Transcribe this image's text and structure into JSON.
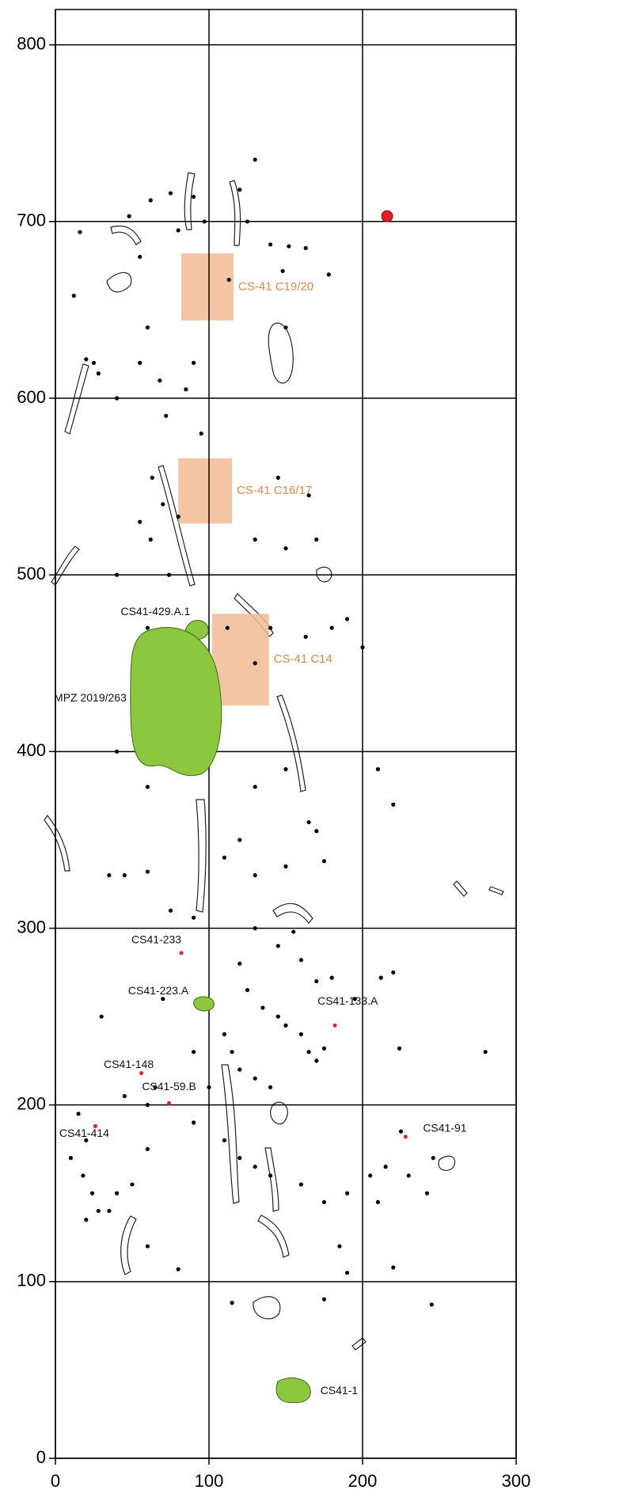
{
  "chart_data": {
    "type": "scatter",
    "xlim": [
      0,
      300
    ],
    "ylim": [
      0,
      820
    ],
    "xticks": [
      0,
      100,
      200,
      300
    ],
    "yticks": [
      0,
      100,
      200,
      300,
      400,
      500,
      600,
      700,
      800
    ],
    "grid": true,
    "color": "#000000",
    "x": [
      16,
      12,
      48,
      62,
      75,
      80,
      55,
      90,
      97,
      120,
      130,
      125,
      140,
      152,
      163,
      178,
      148,
      150,
      113,
      20,
      25,
      28,
      40,
      55,
      60,
      68,
      72,
      85,
      90,
      95,
      63,
      70,
      80,
      55,
      62,
      40,
      74,
      130,
      145,
      165,
      170,
      150,
      140,
      163,
      180,
      200,
      190,
      112,
      130,
      60,
      40,
      60,
      130,
      150,
      165,
      170,
      120,
      110,
      130,
      150,
      175,
      210,
      220,
      35,
      45,
      60,
      75,
      90,
      130,
      145,
      155,
      160,
      170,
      180,
      195,
      212,
      220,
      120,
      125,
      135,
      145,
      150,
      160,
      165,
      170,
      175,
      110,
      115,
      120,
      130,
      140,
      100,
      90,
      70,
      30,
      15,
      20,
      10,
      18,
      24,
      28,
      20,
      35,
      50,
      40,
      60,
      45,
      60,
      65,
      90,
      110,
      120,
      130,
      140,
      160,
      175,
      190,
      205,
      210,
      225,
      215,
      230,
      242,
      246,
      280,
      224,
      220,
      245,
      60,
      80,
      115,
      175,
      185,
      190
    ],
    "y": [
      694,
      658,
      703,
      712,
      716,
      695,
      680,
      714,
      700,
      718,
      735,
      700,
      687,
      686,
      685,
      670,
      672,
      640,
      667,
      622,
      620,
      614,
      600,
      620,
      640,
      610,
      590,
      605,
      620,
      580,
      555,
      540,
      533,
      530,
      520,
      500,
      500,
      520,
      555,
      545,
      520,
      515,
      470,
      465,
      470,
      459,
      475,
      470,
      450,
      470,
      400,
      380,
      380,
      390,
      360,
      355,
      350,
      340,
      330,
      335,
      338,
      390,
      370,
      330,
      330,
      332,
      310,
      306,
      300,
      290,
      298,
      282,
      270,
      272,
      260,
      272,
      275,
      280,
      265,
      255,
      250,
      245,
      240,
      230,
      225,
      232,
      240,
      230,
      220,
      215,
      210,
      210,
      230,
      260,
      250,
      195,
      180,
      170,
      160,
      150,
      140,
      135,
      140,
      155,
      150,
      175,
      205,
      200,
      210,
      190,
      180,
      170,
      165,
      160,
      155,
      145,
      150,
      160,
      145,
      185,
      165,
      160,
      150,
      170,
      230,
      232,
      108,
      87,
      120,
      107,
      88,
      90,
      120,
      105
    ],
    "highlight": {
      "x": 216,
      "y": 703,
      "color": "#e0202a"
    },
    "squares": [
      {
        "label": "CS-41 C19/20",
        "x": [
          82,
          116
        ],
        "y": [
          644,
          682
        ]
      },
      {
        "label": "CS-41 C16/17",
        "x": [
          80,
          115
        ],
        "y": [
          529,
          566
        ]
      },
      {
        "label": "CS-41 C14",
        "x": [
          102,
          139
        ],
        "y": [
          426,
          478
        ]
      }
    ],
    "square_color": "#f2bb94",
    "annotations": [
      {
        "label": "CS41-429.A.1",
        "x": 92,
        "y": 469
      },
      {
        "label": "MPZ 2019/263",
        "x": 85,
        "y": 430
      },
      {
        "label": "CS41-233",
        "x": 82,
        "y": 286
      },
      {
        "label": "CS41-223.A",
        "x": 97,
        "y": 257
      },
      {
        "label": "CS41-133.A",
        "x": 182,
        "y": 245
      },
      {
        "label": "CS41-148",
        "x": 56,
        "y": 218
      },
      {
        "label": "CS41-59.B",
        "x": 74,
        "y": 201
      },
      {
        "label": "CS41-414",
        "x": 26,
        "y": 188
      },
      {
        "label": "CS41-91",
        "x": 228,
        "y": 182
      },
      {
        "label": "CS41-1",
        "x": 155,
        "y": 38
      }
    ],
    "find_color": "#8dc63f"
  }
}
